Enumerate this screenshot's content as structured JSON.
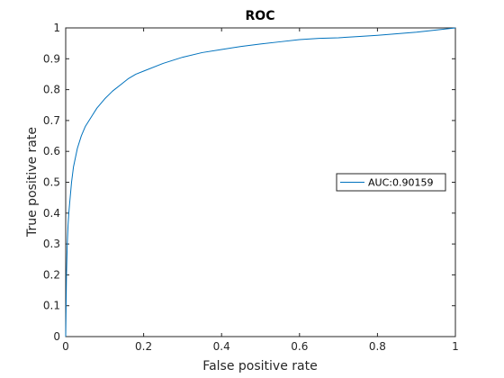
{
  "chart_data": {
    "type": "line",
    "title": "ROC",
    "xlabel": "False positive rate",
    "ylabel": "True positive rate",
    "xlim": [
      0,
      1
    ],
    "ylim": [
      0,
      1
    ],
    "xticks": [
      "0",
      "0.2",
      "0.4",
      "0.6",
      "0.8",
      "1"
    ],
    "yticks": [
      "0",
      "0.1",
      "0.2",
      "0.3",
      "0.4",
      "0.5",
      "0.6",
      "0.7",
      "0.8",
      "0.9",
      "1"
    ],
    "grid": false,
    "legend_position": "right",
    "series": [
      {
        "name": "AUC:0.90159",
        "color": "#0072bd",
        "x": [
          0,
          0.001,
          0.002,
          0.004,
          0.006,
          0.008,
          0.01,
          0.015,
          0.02,
          0.03,
          0.04,
          0.05,
          0.06,
          0.07,
          0.08,
          0.09,
          0.1,
          0.12,
          0.14,
          0.16,
          0.18,
          0.2,
          0.25,
          0.3,
          0.35,
          0.4,
          0.45,
          0.5,
          0.55,
          0.6,
          0.65,
          0.7,
          0.75,
          0.8,
          0.85,
          0.9,
          0.95,
          1.0
        ],
        "y": [
          0,
          0.1,
          0.2,
          0.3,
          0.36,
          0.4,
          0.43,
          0.5,
          0.55,
          0.61,
          0.65,
          0.68,
          0.7,
          0.72,
          0.74,
          0.755,
          0.77,
          0.795,
          0.815,
          0.835,
          0.85,
          0.86,
          0.885,
          0.905,
          0.92,
          0.93,
          0.94,
          0.948,
          0.955,
          0.962,
          0.966,
          0.968,
          0.972,
          0.976,
          0.981,
          0.986,
          0.993,
          1.0
        ]
      }
    ]
  }
}
